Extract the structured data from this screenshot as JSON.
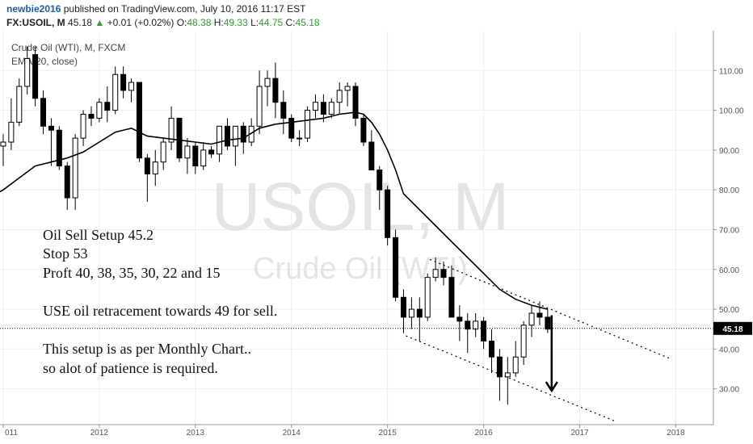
{
  "header": {
    "author": "newbie2016",
    "published_text": "published on TradingView.com, July 10, 2016 11:17 EST",
    "symbol": "FX:USOIL, M",
    "last": "45.18",
    "arrow": "▲",
    "change": "+0.01 (+0.02%)",
    "o_label": "O:",
    "o_value": "48.38",
    "h_label": "H:",
    "h_value": "49.33",
    "l_label": "L:",
    "l_value": "44.75",
    "c_label": "C:",
    "c_value": "45.18"
  },
  "chart_data": {
    "type": "candlestick",
    "title": "Crude Oil (WTI), M, FXCM",
    "indicator": "EMA(20, close)",
    "watermark_symbol": "USOIL, M",
    "watermark_name": "Crude Oil (WTI)",
    "last_price_label": "45.18",
    "last_price": 45.18,
    "ylim": [
      21,
      120
    ],
    "y_ticks": [
      30,
      40,
      50,
      60,
      70,
      80,
      90,
      100,
      110
    ],
    "y_tick_labels": [
      "30.00",
      "40.00",
      "50.00",
      "60.00",
      "70.00",
      "80.00",
      "90.00",
      "100.00",
      "110.00"
    ],
    "x_ticks": [
      {
        "t": 0,
        "label": "011"
      },
      {
        "t": 12,
        "label": "2012"
      },
      {
        "t": 24,
        "label": "2013"
      },
      {
        "t": 36,
        "label": "2014"
      },
      {
        "t": 48,
        "label": "2015"
      },
      {
        "t": 60,
        "label": "2016"
      },
      {
        "t": 72,
        "label": "2017"
      },
      {
        "t": 84,
        "label": "2018"
      }
    ],
    "xlim": [
      -0.4,
      88.7
    ],
    "candles": [
      {
        "t": 0,
        "o": 91,
        "h": 94,
        "l": 86,
        "c": 92
      },
      {
        "t": 1,
        "o": 92,
        "h": 103,
        "l": 90,
        "c": 97
      },
      {
        "t": 2,
        "o": 97,
        "h": 108,
        "l": 96,
        "c": 106
      },
      {
        "t": 3,
        "o": 106,
        "h": 116,
        "l": 104,
        "c": 113
      },
      {
        "t": 4,
        "o": 114,
        "h": 116,
        "l": 101,
        "c": 103
      },
      {
        "t": 5,
        "o": 103,
        "h": 105,
        "l": 94,
        "c": 96
      },
      {
        "t": 6,
        "o": 96,
        "h": 98,
        "l": 86,
        "c": 95
      },
      {
        "t": 7,
        "o": 95,
        "h": 96,
        "l": 85,
        "c": 86
      },
      {
        "t": 8,
        "o": 86,
        "h": 87,
        "l": 75,
        "c": 78
      },
      {
        "t": 9,
        "o": 78,
        "h": 94,
        "l": 75,
        "c": 93
      },
      {
        "t": 10,
        "o": 93,
        "h": 100,
        "l": 91,
        "c": 99
      },
      {
        "t": 11,
        "o": 99,
        "h": 101,
        "l": 96,
        "c": 98
      },
      {
        "t": 12,
        "o": 98,
        "h": 103,
        "l": 97,
        "c": 102
      },
      {
        "t": 13,
        "o": 102,
        "h": 106,
        "l": 97,
        "c": 100
      },
      {
        "t": 14,
        "o": 100,
        "h": 111,
        "l": 99,
        "c": 109
      },
      {
        "t": 15,
        "o": 109,
        "h": 111,
        "l": 103,
        "c": 105
      },
      {
        "t": 16,
        "o": 105,
        "h": 108,
        "l": 102,
        "c": 107
      },
      {
        "t": 17,
        "o": 107,
        "h": 107,
        "l": 87,
        "c": 88
      },
      {
        "t": 18,
        "o": 88,
        "h": 89,
        "l": 77,
        "c": 84
      },
      {
        "t": 19,
        "o": 84,
        "h": 90,
        "l": 81,
        "c": 87
      },
      {
        "t": 20,
        "o": 87,
        "h": 93,
        "l": 85,
        "c": 92
      },
      {
        "t": 21,
        "o": 92,
        "h": 101,
        "l": 90,
        "c": 98
      },
      {
        "t": 22,
        "o": 98,
        "h": 98,
        "l": 87,
        "c": 88
      },
      {
        "t": 23,
        "o": 88,
        "h": 93,
        "l": 84,
        "c": 91
      },
      {
        "t": 24,
        "o": 91,
        "h": 92,
        "l": 84,
        "c": 86
      },
      {
        "t": 25,
        "o": 86,
        "h": 92,
        "l": 85,
        "c": 90
      },
      {
        "t": 26,
        "o": 90,
        "h": 91,
        "l": 88,
        "c": 89
      },
      {
        "t": 27,
        "o": 89,
        "h": 96,
        "l": 87,
        "c": 96
      },
      {
        "t": 28,
        "o": 96,
        "h": 98,
        "l": 90,
        "c": 91
      },
      {
        "t": 29,
        "o": 91,
        "h": 96,
        "l": 86,
        "c": 96
      },
      {
        "t": 30,
        "o": 96,
        "h": 97,
        "l": 89,
        "c": 92
      },
      {
        "t": 31,
        "o": 92,
        "h": 98,
        "l": 91,
        "c": 96
      },
      {
        "t": 32,
        "o": 96,
        "h": 110,
        "l": 94,
        "c": 106
      },
      {
        "t": 33,
        "o": 106,
        "h": 110,
        "l": 101,
        "c": 108
      },
      {
        "t": 34,
        "o": 108,
        "h": 112,
        "l": 98,
        "c": 102
      },
      {
        "t": 35,
        "o": 102,
        "h": 105,
        "l": 94,
        "c": 98
      },
      {
        "t": 36,
        "o": 98,
        "h": 99,
        "l": 92,
        "c": 93
      },
      {
        "t": 37,
        "o": 93,
        "h": 95,
        "l": 91,
        "c": 93
      },
      {
        "t": 38,
        "o": 93,
        "h": 101,
        "l": 92,
        "c": 100
      },
      {
        "t": 39,
        "o": 100,
        "h": 104,
        "l": 98,
        "c": 102
      },
      {
        "t": 40,
        "o": 102,
        "h": 104,
        "l": 97,
        "c": 99
      },
      {
        "t": 41,
        "o": 99,
        "h": 103,
        "l": 98,
        "c": 102
      },
      {
        "t": 42,
        "o": 102,
        "h": 107,
        "l": 99,
        "c": 105
      },
      {
        "t": 43,
        "o": 105,
        "h": 107,
        "l": 101,
        "c": 106
      },
      {
        "t": 44,
        "o": 106,
        "h": 107,
        "l": 96,
        "c": 98
      },
      {
        "t": 45,
        "o": 98,
        "h": 99,
        "l": 91,
        "c": 92
      },
      {
        "t": 46,
        "o": 92,
        "h": 95,
        "l": 85,
        "c": 85
      },
      {
        "t": 47,
        "o": 85,
        "h": 86,
        "l": 75,
        "c": 80
      },
      {
        "t": 48,
        "o": 80,
        "h": 81,
        "l": 66,
        "c": 68
      },
      {
        "t": 49,
        "o": 68,
        "h": 70,
        "l": 52,
        "c": 53
      },
      {
        "t": 50,
        "o": 53,
        "h": 55,
        "l": 44,
        "c": 48
      },
      {
        "t": 51,
        "o": 48,
        "h": 53,
        "l": 45,
        "c": 50
      },
      {
        "t": 52,
        "o": 50,
        "h": 53,
        "l": 42,
        "c": 48
      },
      {
        "t": 53,
        "o": 48,
        "h": 59,
        "l": 47,
        "c": 58
      },
      {
        "t": 54,
        "o": 58,
        "h": 63,
        "l": 57,
        "c": 60
      },
      {
        "t": 55,
        "o": 60,
        "h": 62,
        "l": 56,
        "c": 58
      },
      {
        "t": 56,
        "o": 58,
        "h": 61,
        "l": 48,
        "c": 48
      },
      {
        "t": 57,
        "o": 48,
        "h": 51,
        "l": 42,
        "c": 47
      },
      {
        "t": 58,
        "o": 47,
        "h": 49,
        "l": 39,
        "c": 45
      },
      {
        "t": 59,
        "o": 45,
        "h": 49,
        "l": 43,
        "c": 47
      },
      {
        "t": 60,
        "o": 47,
        "h": 48,
        "l": 40,
        "c": 42
      },
      {
        "t": 61,
        "o": 42,
        "h": 45,
        "l": 34,
        "c": 38
      },
      {
        "t": 62,
        "o": 38,
        "h": 40,
        "l": 27,
        "c": 33
      },
      {
        "t": 63,
        "o": 33,
        "h": 38,
        "l": 26,
        "c": 34
      },
      {
        "t": 64,
        "o": 34,
        "h": 42,
        "l": 33,
        "c": 38
      },
      {
        "t": 65,
        "o": 38,
        "h": 47,
        "l": 36,
        "c": 46
      },
      {
        "t": 66,
        "o": 46,
        "h": 51,
        "l": 43,
        "c": 49
      },
      {
        "t": 67,
        "o": 49,
        "h": 52,
        "l": 46,
        "c": 48
      },
      {
        "t": 68,
        "o": 48,
        "h": 50,
        "l": 44,
        "c": 45
      }
    ],
    "ema20": [
      {
        "t": -1,
        "v": 78.8
      },
      {
        "t": 0,
        "v": 80
      },
      {
        "t": 2,
        "v": 83
      },
      {
        "t": 4,
        "v": 86
      },
      {
        "t": 6,
        "v": 87
      },
      {
        "t": 8,
        "v": 88
      },
      {
        "t": 10,
        "v": 89.5
      },
      {
        "t": 12,
        "v": 92
      },
      {
        "t": 14,
        "v": 94.5
      },
      {
        "t": 16,
        "v": 95.5
      },
      {
        "t": 18,
        "v": 93.5
      },
      {
        "t": 20,
        "v": 93
      },
      {
        "t": 22,
        "v": 92.5
      },
      {
        "t": 24,
        "v": 92
      },
      {
        "t": 26,
        "v": 91.5
      },
      {
        "t": 28,
        "v": 92.5
      },
      {
        "t": 30,
        "v": 93
      },
      {
        "t": 32,
        "v": 95.5
      },
      {
        "t": 34,
        "v": 96.5
      },
      {
        "t": 36,
        "v": 97
      },
      {
        "t": 38,
        "v": 97.5
      },
      {
        "t": 40,
        "v": 98
      },
      {
        "t": 42,
        "v": 99
      },
      {
        "t": 44,
        "v": 99.5
      },
      {
        "t": 45,
        "v": 99
      },
      {
        "t": 46,
        "v": 97
      },
      {
        "t": 47,
        "v": 94
      },
      {
        "t": 48,
        "v": 90
      },
      {
        "t": 49,
        "v": 85
      },
      {
        "t": 50,
        "v": 79
      },
      {
        "t": 52,
        "v": 75
      },
      {
        "t": 54,
        "v": 71
      },
      {
        "t": 56,
        "v": 67
      },
      {
        "t": 58,
        "v": 63
      },
      {
        "t": 60,
        "v": 59
      },
      {
        "t": 62,
        "v": 55
      },
      {
        "t": 64,
        "v": 52.5
      },
      {
        "t": 66,
        "v": 51
      },
      {
        "t": 68,
        "v": 50
      }
    ],
    "channel_lines": [
      {
        "t1": 53.3,
        "v1": 62.5,
        "t2": 83.4,
        "v2": 37.5
      },
      {
        "t1": 50.3,
        "v1": 43.3,
        "t2": 76.5,
        "v2": 21.8
      }
    ],
    "target_arrow": {
      "t": 68.5,
      "v1": 48.5,
      "v2": 29.5
    },
    "annotations": [
      "Oil Sell Setup 45.2",
      "Stop 53",
      "Proft 40, 38, 35, 30, 22 and 15",
      "USE oil retracement towards 49 for sell.",
      "This setup is as per Monthly Chart..",
      "so alot of patience is required."
    ],
    "grid": true,
    "colors": {
      "up": "#ffffff",
      "down": "#000000",
      "ema": "#000000",
      "grid": "#eeeeee",
      "price_tag": "#000000"
    }
  }
}
